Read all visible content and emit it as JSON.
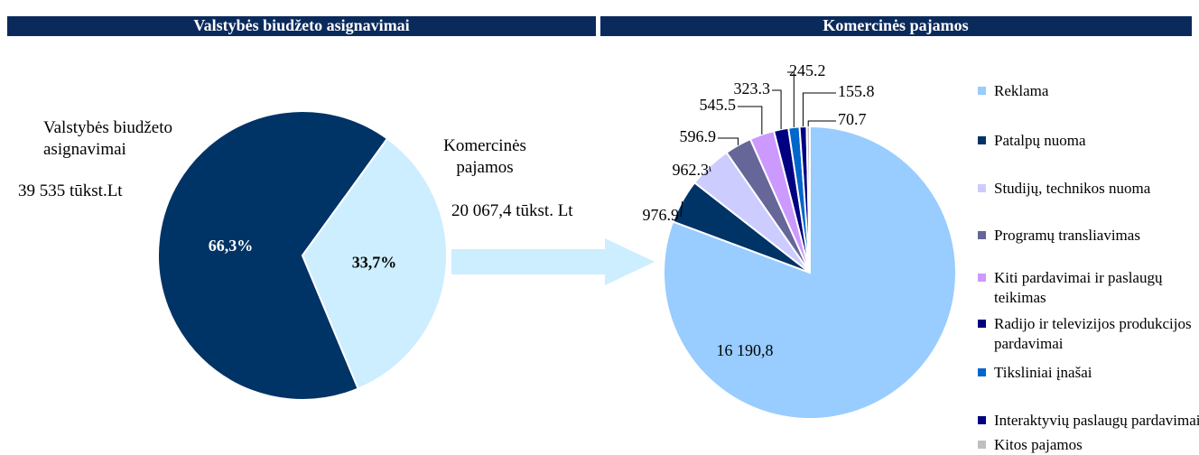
{
  "chart_data": [
    {
      "type": "pie",
      "title": "Valstybės biudžeto asignavimai",
      "categories": [
        "Valstybės biudžeto asignavimai",
        "Komercinės pajamos"
      ],
      "values": [
        66.3,
        33.7
      ],
      "value_labels": [
        "66,3%",
        "33,7%"
      ],
      "colors": [
        "#003366",
        "#cceeff"
      ],
      "annotations": [
        "39 535 tūkst.Lt",
        "20 067,4 tūkst. Lt"
      ]
    },
    {
      "type": "pie",
      "title": "Komercinės pajamos",
      "categories": [
        "Reklama",
        "Patalpų nuoma",
        "Studijų, technikos nuoma",
        "Programų transliavimas",
        "Kiti pardavimai ir paslaugų teikimas",
        "Radijo ir televizijos produkcijos pardavimai",
        "Tiksliniai įnašai",
        "Interaktyvių paslaugų pardavimai",
        "Kitos pajamos"
      ],
      "values": [
        16190.8,
        976.9,
        962.3,
        596.9,
        545.5,
        323.3,
        245.2,
        155.8,
        70.7
      ],
      "value_labels": [
        "16 190,8",
        "976.9",
        "962.3",
        "596.9",
        "545.5",
        "323.3",
        "245.2",
        "155.8",
        "70.7"
      ],
      "colors": [
        "#99ccff",
        "#003366",
        "#ccccff",
        "#666699",
        "#cc99ff",
        "#000080",
        "#0066cc",
        "#000080",
        "#c0c0c0"
      ],
      "legend": "right"
    }
  ]
}
